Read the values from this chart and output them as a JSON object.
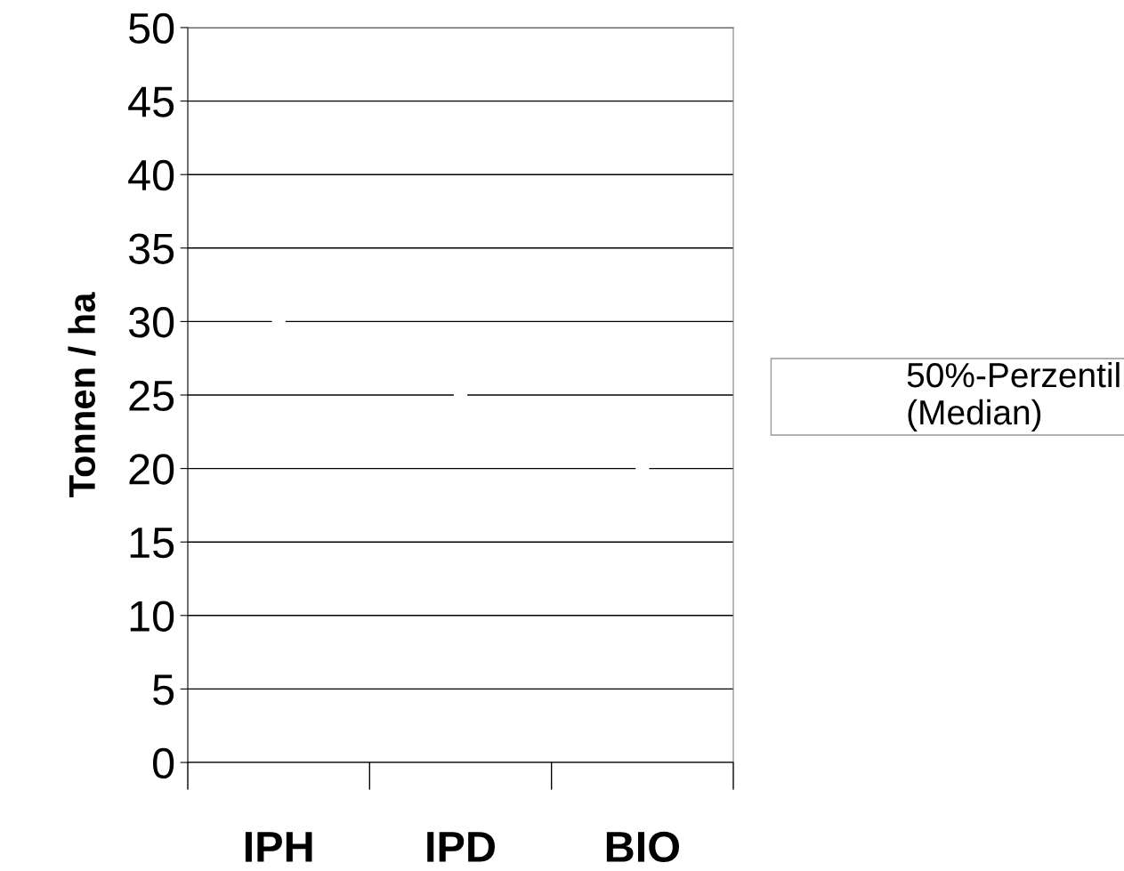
{
  "chart_data": {
    "type": "scatter",
    "ylabel": "Tonnen / ha",
    "categories": [
      "IPH",
      "IPD",
      "BIO"
    ],
    "series": [
      {
        "name": "50%-Perzentil\n(Median)",
        "color": "#ffffff",
        "values": [
          30,
          25,
          20
        ]
      }
    ],
    "ylim": [
      0,
      50
    ],
    "yticks": [
      0,
      5,
      10,
      15,
      20,
      25,
      30,
      35,
      40,
      45,
      50
    ],
    "grid": "y",
    "legend": "right",
    "marker": "square"
  }
}
